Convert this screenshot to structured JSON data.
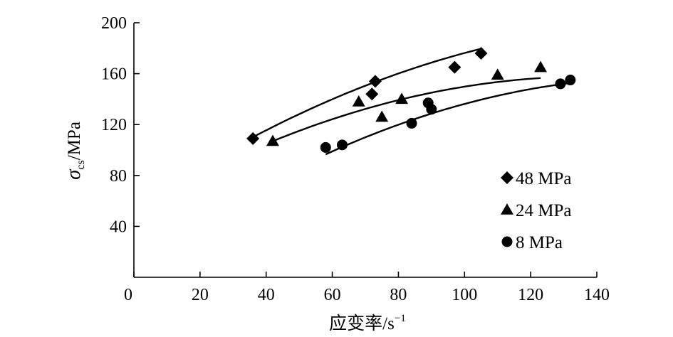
{
  "chart_data": {
    "type": "scatter",
    "xlabel": {
      "main": "应变率/s",
      "sup": "−1"
    },
    "ylabel": {
      "sym": "σ",
      "sub": "cs",
      "unit": "/MPa"
    },
    "xlim": [
      0,
      140
    ],
    "ylim": [
      0,
      200
    ],
    "x_ticks": [
      0,
      20,
      40,
      60,
      80,
      100,
      120,
      140
    ],
    "y_ticks": [
      40,
      80,
      120,
      160,
      200
    ],
    "legend_position": "bottom-right",
    "series": [
      {
        "name": "48 MPa",
        "marker": "diamond",
        "x": [
          36,
          72,
          73,
          97,
          105
        ],
        "y": [
          109,
          144,
          154,
          165,
          176
        ],
        "fit_x": [
          36,
          105
        ],
        "fit_a": 54.2,
        "fit_b": 1.74,
        "fit_c": -0.0052
      },
      {
        "name": "24 MPa",
        "marker": "triangle",
        "x": [
          42,
          68,
          75,
          81,
          110,
          123
        ],
        "y": [
          107,
          138,
          126,
          140,
          159,
          165
        ],
        "fit_x": [
          42,
          123
        ],
        "fit_a": 52.8,
        "fit_b": 1.52,
        "fit_c": -0.0055
      },
      {
        "name": "8 MPa",
        "marker": "circle",
        "x": [
          58,
          63,
          84,
          89,
          90,
          129,
          132
        ],
        "y": [
          102,
          104,
          121,
          137,
          132,
          152,
          155
        ],
        "fit_x": [
          58,
          132
        ],
        "fit_a": 8.2,
        "fit_b": 1.86,
        "fit_c": -0.0058
      }
    ]
  }
}
